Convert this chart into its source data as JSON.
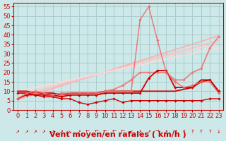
{
  "background_color": "#cce8e8",
  "grid_color": "#aacccc",
  "xlabel": "Vent moyen/en rafales ( km/h )",
  "xlabel_color": "#cc0000",
  "xlabel_fontsize": 8,
  "tick_color": "#cc0000",
  "tick_fontsize": 6,
  "xlim": [
    -0.5,
    23.5
  ],
  "ylim": [
    0,
    57
  ],
  "yticks": [
    0,
    5,
    10,
    15,
    20,
    25,
    30,
    35,
    40,
    45,
    50,
    55
  ],
  "xticks": [
    0,
    1,
    2,
    3,
    4,
    5,
    6,
    7,
    8,
    9,
    10,
    11,
    12,
    13,
    14,
    15,
    16,
    17,
    18,
    19,
    20,
    21,
    22,
    23
  ],
  "lines": [
    {
      "note": "bottom dark red with diamonds - small values",
      "x": [
        0,
        1,
        2,
        3,
        4,
        5,
        6,
        7,
        8,
        9,
        10,
        11,
        12,
        13,
        14,
        15,
        16,
        17,
        18,
        19,
        20,
        21,
        22,
        23
      ],
      "y": [
        6,
        8,
        8,
        7,
        7,
        6,
        6,
        4,
        3,
        4,
        5,
        6,
        4,
        5,
        5,
        5,
        5,
        5,
        5,
        5,
        5,
        5,
        6,
        6
      ],
      "color": "#cc0000",
      "lw": 1.0,
      "marker": "D",
      "ms": 1.8,
      "alpha": 1.0,
      "zorder": 5
    },
    {
      "note": "dark red with diamonds - middle line peaking at 15-17",
      "x": [
        0,
        1,
        2,
        3,
        4,
        5,
        6,
        7,
        8,
        9,
        10,
        11,
        12,
        13,
        14,
        15,
        16,
        17,
        18,
        19,
        20,
        21,
        22,
        23
      ],
      "y": [
        9,
        9,
        8,
        8,
        8,
        7,
        8,
        8,
        8,
        8,
        9,
        9,
        9,
        9,
        9,
        17,
        21,
        21,
        12,
        12,
        12,
        15,
        16,
        10
      ],
      "color": "#cc0000",
      "lw": 1.3,
      "marker": "D",
      "ms": 1.8,
      "alpha": 1.0,
      "zorder": 5
    },
    {
      "note": "dark red flat around 10 with uptick at end",
      "x": [
        0,
        1,
        2,
        3,
        4,
        5,
        6,
        7,
        8,
        9,
        10,
        11,
        12,
        13,
        14,
        15,
        16,
        17,
        18,
        19,
        20,
        21,
        22,
        23
      ],
      "y": [
        10,
        10,
        9,
        9,
        9,
        8,
        9,
        9,
        9,
        9,
        10,
        10,
        10,
        10,
        10,
        10,
        10,
        10,
        10,
        11,
        12,
        16,
        16,
        10
      ],
      "color": "#cc0000",
      "lw": 1.3,
      "marker": null,
      "ms": 0,
      "alpha": 1.0,
      "zorder": 4
    },
    {
      "note": "medium pink with diamonds - peaked line going high at 14-15",
      "x": [
        0,
        1,
        2,
        3,
        4,
        5,
        6,
        7,
        8,
        9,
        10,
        11,
        12,
        13,
        14,
        15,
        16,
        17,
        18,
        19,
        20,
        21,
        22,
        23
      ],
      "y": [
        6,
        9,
        10,
        9,
        8,
        9,
        9,
        9,
        9,
        9,
        10,
        10,
        10,
        10,
        48,
        55,
        37,
        20,
        15,
        12,
        13,
        15,
        15,
        9
      ],
      "color": "#ee6666",
      "lw": 1.0,
      "marker": "D",
      "ms": 1.8,
      "alpha": 0.9,
      "zorder": 5
    },
    {
      "note": "diagonal line 1 - lightest pink straight line",
      "x": [
        0,
        23
      ],
      "y": [
        5.5,
        39.5
      ],
      "color": "#ffaaaa",
      "lw": 1.3,
      "marker": null,
      "ms": 0,
      "alpha": 0.85,
      "zorder": 2
    },
    {
      "note": "diagonal line 2",
      "x": [
        0,
        23
      ],
      "y": [
        7.0,
        37.0
      ],
      "color": "#ffbbbb",
      "lw": 1.3,
      "marker": null,
      "ms": 0,
      "alpha": 0.8,
      "zorder": 2
    },
    {
      "note": "diagonal line 3",
      "x": [
        0,
        23
      ],
      "y": [
        8.5,
        35.5
      ],
      "color": "#ffcccc",
      "lw": 1.3,
      "marker": null,
      "ms": 0,
      "alpha": 0.75,
      "zorder": 2
    },
    {
      "note": "diagonal line 4 - slightly less steep",
      "x": [
        0,
        23
      ],
      "y": [
        10.0,
        33.0
      ],
      "color": "#ffdddd",
      "lw": 1.3,
      "marker": null,
      "ms": 0,
      "alpha": 0.7,
      "zorder": 2
    },
    {
      "note": "medium pink with diamonds going diagonal at end",
      "x": [
        0,
        1,
        2,
        3,
        4,
        5,
        6,
        7,
        8,
        9,
        10,
        11,
        12,
        13,
        14,
        15,
        16,
        17,
        18,
        19,
        20,
        21,
        22,
        23
      ],
      "y": [
        6,
        8,
        9,
        8,
        7,
        8,
        8,
        8,
        8,
        8,
        10,
        11,
        13,
        16,
        20,
        20,
        20,
        20,
        16,
        16,
        20,
        22,
        33,
        39
      ],
      "color": "#ee7777",
      "lw": 1.3,
      "marker": "D",
      "ms": 1.8,
      "alpha": 0.9,
      "zorder": 4
    }
  ],
  "wind_arrows": [
    "↗",
    "↗",
    "↗",
    "↗",
    "↗",
    "↗",
    "↘",
    "↗",
    "←",
    "←",
    "←",
    "←",
    "←",
    "↙",
    "↗",
    "↗",
    "→",
    "↗",
    "→",
    "↑",
    "↑",
    "↑",
    "↑",
    "↓"
  ]
}
